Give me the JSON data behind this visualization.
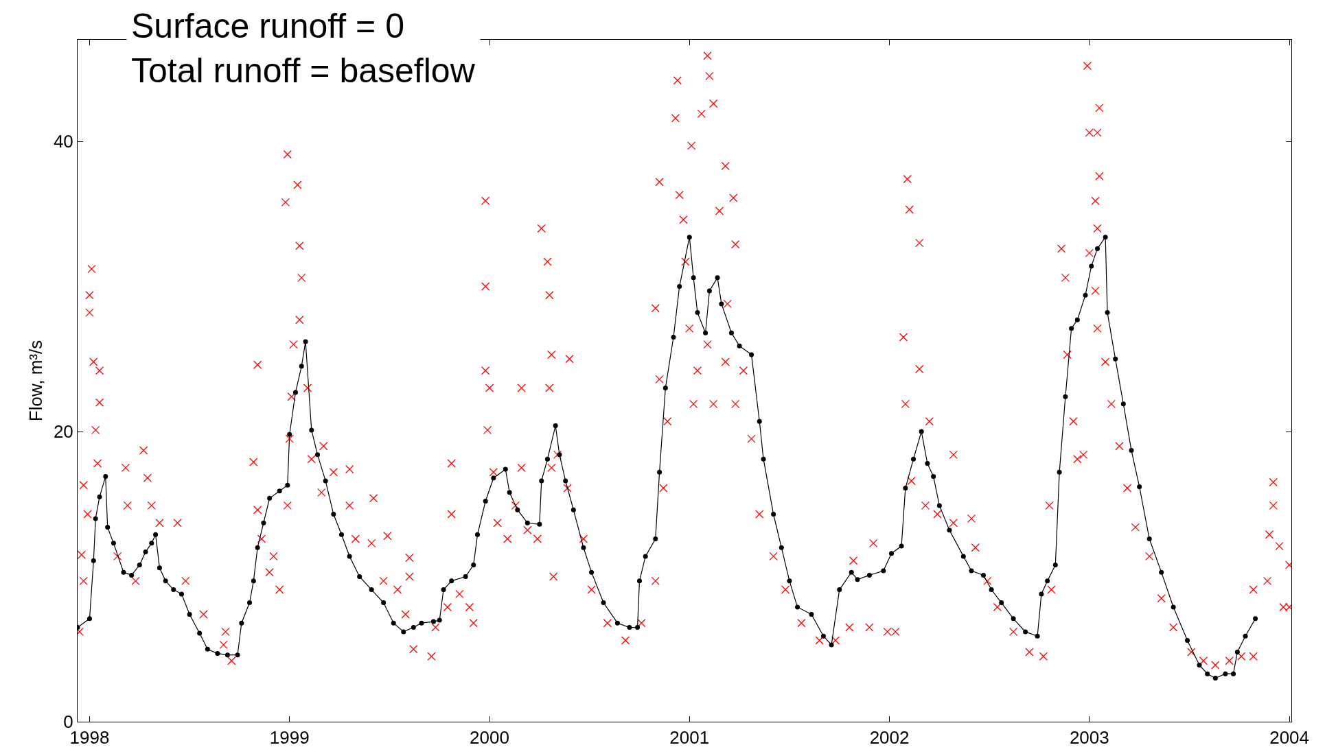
{
  "chart_data": {
    "type": "scatter",
    "ylabel": "Flow, m³/s",
    "annotations": [
      "Surface runoff = 0",
      "Total runoff = baseflow"
    ],
    "xlim": [
      1997.94,
      2004.01
    ],
    "xticks": [
      1998,
      1999,
      2000,
      2001,
      2002,
      2003,
      2004
    ],
    "ylim": [
      0,
      47
    ],
    "yticks": [
      0,
      20,
      40
    ],
    "series": [
      {
        "marker": "cross",
        "color": "#ff0000",
        "x": [
          1998.01,
          1998.0,
          1998.0,
          1998.02,
          1998.05,
          1998.05,
          1998.03,
          1998.04,
          1997.96,
          1997.97,
          1997.95,
          1997.97,
          1997.99,
          1998.18,
          1998.27,
          1998.29,
          1998.31,
          1998.35,
          1998.19,
          1998.14,
          1998.23,
          1998.44,
          1998.48,
          1998.57,
          1998.67,
          1998.71,
          1998.68,
          1998.82,
          1998.84,
          1998.84,
          1998.86,
          1998.9,
          1998.92,
          1998.95,
          1998.99,
          1998.99,
          1998.98,
          1999.04,
          1999.05,
          1999.06,
          1999.05,
          1999.02,
          1999.01,
          1999.0,
          1999.09,
          1999.11,
          1999.17,
          1999.16,
          1999.22,
          1999.3,
          1999.3,
          1999.33,
          1999.41,
          1999.42,
          1999.47,
          1999.49,
          1999.54,
          1999.58,
          1999.6,
          1999.6,
          1999.62,
          1999.71,
          1999.73,
          1999.81,
          1999.81,
          1999.79,
          1999.85,
          1999.9,
          1999.92,
          1999.98,
          1999.98,
          1999.98,
          1999.99,
          2000.0,
          2000.02,
          2000.04,
          2000.09,
          2000.13,
          2000.16,
          2000.16,
          2000.19,
          2000.24,
          2000.26,
          2000.29,
          2000.3,
          2000.31,
          2000.3,
          2000.31,
          2000.32,
          2000.34,
          2000.4,
          2000.39,
          2000.47,
          2000.51,
          2000.59,
          2000.68,
          2000.76,
          2000.83,
          2000.83,
          2000.85,
          2000.85,
          2000.87,
          2000.89,
          2000.93,
          2000.94,
          2000.95,
          2000.97,
          2000.98,
          2001.01,
          2001.0,
          2001.02,
          2001.04,
          2001.06,
          2001.09,
          2001.1,
          2001.12,
          2001.09,
          2001.12,
          2001.15,
          2001.18,
          2001.18,
          2001.22,
          2001.23,
          2001.19,
          2001.23,
          2001.27,
          2001.31,
          2001.35,
          2001.42,
          2001.48,
          2001.56,
          2001.65,
          2001.73,
          2001.82,
          2001.8,
          2001.9,
          2001.92,
          2001.99,
          2002.03,
          2002.07,
          2002.09,
          2002.1,
          2002.15,
          2002.15,
          2002.08,
          2002.11,
          2002.18,
          2002.2,
          2002.24,
          2002.32,
          2002.32,
          2002.41,
          2002.43,
          2002.49,
          2002.54,
          2002.62,
          2002.7,
          2002.77,
          2002.8,
          2002.81,
          2002.86,
          2002.88,
          2002.89,
          2002.92,
          2002.94,
          2002.97,
          2002.99,
          2003.0,
          2003.04,
          2003.05,
          2003.05,
          2003.03,
          2003.04,
          2003.0,
          2003.03,
          2003.04,
          2003.08,
          2003.11,
          2003.15,
          2003.19,
          2003.23,
          2003.3,
          2003.36,
          2003.42,
          2003.51,
          2003.57,
          2003.63,
          2003.7,
          2003.76,
          2003.82,
          2003.82,
          2003.9,
          2003.92,
          2003.92,
          2003.95,
          2003.97,
          2004.0,
          2004.0,
          2003.89
        ],
        "values": [
          31.2,
          29.4,
          28.2,
          24.8,
          24.2,
          22.0,
          20.1,
          17.8,
          11.5,
          16.3,
          6.2,
          9.7,
          14.3,
          17.5,
          18.7,
          16.8,
          14.9,
          13.7,
          14.9,
          11.4,
          9.7,
          13.7,
          9.7,
          7.4,
          5.3,
          4.2,
          6.2,
          17.9,
          24.6,
          14.6,
          12.6,
          10.3,
          11.4,
          9.1,
          14.9,
          39.1,
          35.8,
          37.0,
          32.8,
          30.6,
          27.7,
          26.0,
          22.4,
          19.5,
          23.0,
          18.1,
          19.0,
          15.8,
          17.2,
          17.4,
          14.9,
          12.6,
          12.3,
          15.4,
          9.7,
          12.8,
          9.1,
          7.4,
          11.3,
          10.0,
          5.0,
          4.5,
          6.5,
          17.8,
          14.3,
          7.9,
          8.8,
          7.9,
          6.8,
          35.9,
          30.0,
          24.2,
          20.1,
          23.0,
          17.2,
          13.7,
          12.6,
          14.9,
          17.5,
          23.0,
          13.2,
          12.6,
          34.0,
          31.7,
          29.4,
          25.3,
          23.0,
          17.5,
          10.0,
          18.4,
          25.0,
          16.1,
          12.6,
          9.1,
          6.8,
          5.6,
          6.8,
          9.7,
          28.5,
          37.2,
          23.6,
          16.1,
          20.7,
          41.6,
          44.2,
          36.3,
          34.6,
          31.7,
          39.7,
          27.1,
          21.9,
          24.2,
          41.9,
          45.9,
          44.5,
          42.6,
          26.0,
          21.9,
          35.2,
          38.3,
          24.8,
          36.1,
          32.9,
          28.8,
          21.9,
          24.2,
          19.5,
          14.3,
          11.4,
          9.1,
          6.8,
          5.6,
          5.6,
          11.1,
          6.5,
          6.5,
          12.3,
          6.2,
          6.2,
          26.5,
          37.4,
          35.3,
          33.0,
          24.3,
          21.9,
          16.6,
          14.9,
          20.7,
          14.3,
          18.4,
          13.7,
          14.0,
          12.0,
          9.7,
          7.9,
          6.2,
          4.8,
          4.5,
          14.9,
          9.1,
          32.6,
          30.6,
          25.3,
          20.7,
          18.1,
          18.4,
          45.2,
          40.6,
          40.6,
          42.3,
          37.6,
          35.9,
          34.0,
          32.3,
          29.7,
          27.1,
          24.8,
          21.9,
          19.0,
          16.1,
          13.4,
          11.4,
          8.5,
          6.5,
          4.8,
          4.2,
          3.9,
          4.2,
          4.5,
          4.5,
          9.1,
          12.9,
          16.5,
          14.9,
          12.1,
          7.9,
          10.8,
          7.9,
          9.7
        ]
      },
      {
        "type": "line",
        "marker": "circle",
        "line_style": "solid",
        "color": "#000000",
        "x": [
          1997.94,
          1998.0,
          1998.02,
          1998.03,
          1998.05,
          1998.08,
          1998.09,
          1998.12,
          1998.17,
          1998.21,
          1998.25,
          1998.28,
          1998.31,
          1998.33,
          1998.35,
          1998.38,
          1998.42,
          1998.46,
          1998.5,
          1998.55,
          1998.59,
          1998.64,
          1998.69,
          1998.74,
          1998.76,
          1998.8,
          1998.82,
          1998.84,
          1998.87,
          1998.9,
          1998.95,
          1998.99,
          1999.0,
          1999.03,
          1999.06,
          1999.08,
          1999.11,
          1999.14,
          1999.18,
          1999.22,
          1999.26,
          1999.3,
          1999.35,
          1999.41,
          1999.47,
          1999.52,
          1999.57,
          1999.62,
          1999.66,
          1999.72,
          1999.75,
          1999.77,
          1999.81,
          1999.88,
          1999.92,
          1999.94,
          1999.98,
          2000.02,
          2000.08,
          2000.1,
          2000.14,
          2000.19,
          2000.25,
          2000.26,
          2000.29,
          2000.33,
          2000.35,
          2000.38,
          2000.42,
          2000.47,
          2000.51,
          2000.57,
          2000.64,
          2000.7,
          2000.74,
          2000.75,
          2000.78,
          2000.83,
          2000.85,
          2000.88,
          2000.92,
          2000.95,
          2001.0,
          2001.02,
          2001.04,
          2001.08,
          2001.1,
          2001.14,
          2001.16,
          2001.21,
          2001.25,
          2001.31,
          2001.35,
          2001.37,
          2001.42,
          2001.46,
          2001.5,
          2001.54,
          2001.61,
          2001.67,
          2001.71,
          2001.75,
          2001.81,
          2001.84,
          2001.9,
          2001.97,
          2002.01,
          2002.06,
          2002.08,
          2002.12,
          2002.16,
          2002.19,
          2002.22,
          2002.25,
          2002.3,
          2002.37,
          2002.41,
          2002.47,
          2002.51,
          2002.56,
          2002.62,
          2002.68,
          2002.74,
          2002.76,
          2002.79,
          2002.83,
          2002.85,
          2002.88,
          2002.91,
          2002.94,
          2002.98,
          2003.01,
          2003.04,
          2003.08,
          2003.09,
          2003.13,
          2003.17,
          2003.21,
          2003.25,
          2003.3,
          2003.36,
          2003.42,
          2003.49,
          2003.55,
          2003.59,
          2003.63,
          2003.68,
          2003.72,
          2003.74,
          2003.78,
          2003.83
        ],
        "values": [
          6.5,
          7.1,
          11.1,
          14.0,
          15.5,
          16.9,
          13.4,
          12.3,
          10.3,
          10.1,
          10.8,
          11.7,
          12.3,
          12.9,
          10.6,
          9.7,
          9.1,
          8.8,
          7.4,
          6.1,
          5.0,
          4.7,
          4.6,
          4.6,
          6.8,
          8.2,
          9.7,
          12.0,
          13.7,
          15.4,
          15.9,
          16.3,
          19.8,
          22.7,
          24.5,
          26.2,
          20.1,
          18.4,
          16.6,
          14.3,
          12.9,
          11.4,
          10.0,
          9.1,
          8.2,
          6.8,
          6.2,
          6.5,
          6.8,
          6.9,
          7.0,
          9.1,
          9.7,
          10.0,
          10.8,
          12.9,
          15.2,
          16.8,
          17.4,
          15.8,
          14.6,
          13.7,
          13.6,
          16.6,
          18.1,
          20.4,
          18.4,
          16.6,
          14.6,
          12.0,
          10.3,
          8.2,
          6.8,
          6.5,
          6.5,
          9.7,
          11.4,
          12.6,
          17.2,
          23.0,
          26.5,
          30.0,
          33.4,
          30.6,
          28.2,
          26.8,
          29.7,
          30.6,
          28.8,
          26.8,
          25.9,
          25.3,
          20.7,
          18.1,
          14.3,
          12.0,
          9.7,
          7.9,
          7.4,
          5.9,
          5.3,
          9.1,
          10.3,
          9.8,
          10.1,
          10.4,
          11.6,
          12.1,
          16.1,
          18.1,
          20.0,
          17.8,
          16.9,
          14.9,
          13.2,
          11.4,
          10.4,
          10.1,
          9.1,
          8.2,
          7.1,
          6.2,
          5.9,
          8.8,
          9.7,
          10.8,
          17.2,
          22.4,
          27.1,
          27.7,
          29.4,
          31.4,
          32.6,
          33.4,
          28.2,
          25.0,
          21.9,
          18.7,
          16.2,
          12.6,
          10.3,
          7.9,
          5.6,
          3.9,
          3.3,
          3.0,
          3.3,
          3.3,
          4.8,
          5.9,
          7.1
        ]
      }
    ]
  }
}
